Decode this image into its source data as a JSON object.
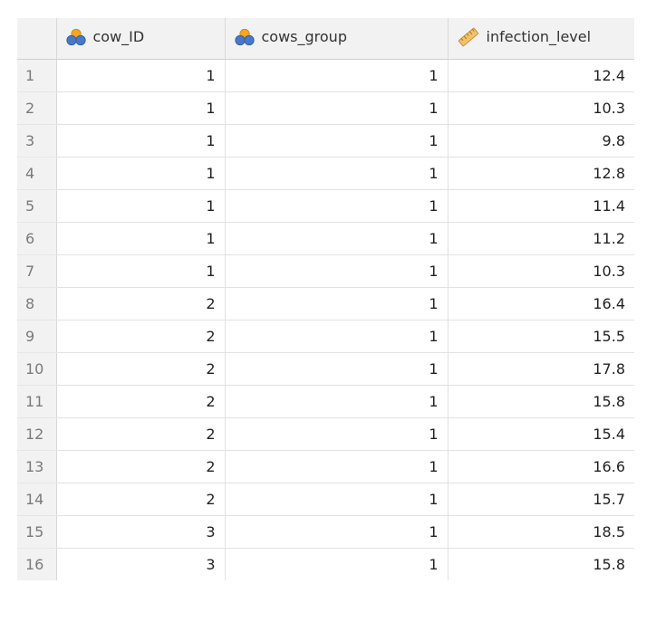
{
  "columns": [
    {
      "label": "cow_ID",
      "icon": "nominal-variable-icon"
    },
    {
      "label": "cows_group",
      "icon": "nominal-variable-icon"
    },
    {
      "label": "infection_level",
      "icon": "ruler-icon"
    }
  ],
  "rows": [
    {
      "num": "1",
      "cow_ID": "1",
      "cows_group": "1",
      "infection_level": "12.4"
    },
    {
      "num": "2",
      "cow_ID": "1",
      "cows_group": "1",
      "infection_level": "10.3"
    },
    {
      "num": "3",
      "cow_ID": "1",
      "cows_group": "1",
      "infection_level": "9.8"
    },
    {
      "num": "4",
      "cow_ID": "1",
      "cows_group": "1",
      "infection_level": "12.8"
    },
    {
      "num": "5",
      "cow_ID": "1",
      "cows_group": "1",
      "infection_level": "11.4"
    },
    {
      "num": "6",
      "cow_ID": "1",
      "cows_group": "1",
      "infection_level": "11.2"
    },
    {
      "num": "7",
      "cow_ID": "1",
      "cows_group": "1",
      "infection_level": "10.3"
    },
    {
      "num": "8",
      "cow_ID": "2",
      "cows_group": "1",
      "infection_level": "16.4"
    },
    {
      "num": "9",
      "cow_ID": "2",
      "cows_group": "1",
      "infection_level": "15.5"
    },
    {
      "num": "10",
      "cow_ID": "2",
      "cows_group": "1",
      "infection_level": "17.8"
    },
    {
      "num": "11",
      "cow_ID": "2",
      "cows_group": "1",
      "infection_level": "15.8"
    },
    {
      "num": "12",
      "cow_ID": "2",
      "cows_group": "1",
      "infection_level": "15.4"
    },
    {
      "num": "13",
      "cow_ID": "2",
      "cows_group": "1",
      "infection_level": "16.6"
    },
    {
      "num": "14",
      "cow_ID": "2",
      "cows_group": "1",
      "infection_level": "15.7"
    },
    {
      "num": "15",
      "cow_ID": "3",
      "cows_group": "1",
      "infection_level": "18.5"
    },
    {
      "num": "16",
      "cow_ID": "3",
      "cows_group": "1",
      "infection_level": "15.8"
    }
  ],
  "colors": {
    "nominal_orange": "#f5a623",
    "nominal_blue": "#4a78c9",
    "ruler_fill": "#f2c26b",
    "header_bg": "#f2f2f2"
  }
}
